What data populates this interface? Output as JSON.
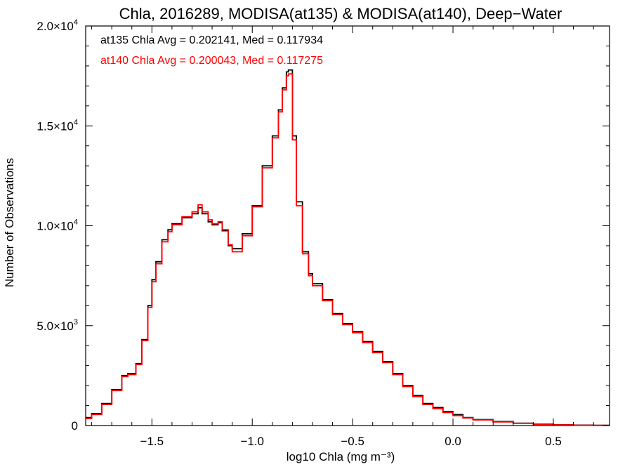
{
  "chart_data": {
    "type": "line",
    "step": true,
    "title": "Chla, 2016289, MODISA(at135) & MODISA(at140), Deep−Water",
    "xlabel": "log10 Chla (mg m⁻³)",
    "ylabel": "Number of Observations",
    "xlim": [
      -1.83,
      0.78
    ],
    "ylim": [
      0,
      20000
    ],
    "x_ticks": [
      {
        "value": -1.5,
        "label": "−1.5"
      },
      {
        "value": -1.0,
        "label": "−1.0"
      },
      {
        "value": -0.5,
        "label": "−0.5"
      },
      {
        "value": 0.0,
        "label": "0.0"
      },
      {
        "value": 0.5,
        "label": "0.5"
      }
    ],
    "y_ticks": [
      {
        "value": 0,
        "mant": "0",
        "exp": ""
      },
      {
        "value": 5000,
        "mant": "5.0×10",
        "exp": "3"
      },
      {
        "value": 10000,
        "mant": "1.0×10",
        "exp": "4"
      },
      {
        "value": 15000,
        "mant": "1.5×10",
        "exp": "4"
      },
      {
        "value": 20000,
        "mant": "2.0×10",
        "exp": "4"
      }
    ],
    "annotations": [
      {
        "text": "at135 Chla Avg = 0.202141, Med = 0.117934",
        "color": "#000000"
      },
      {
        "text": "at140 Chla Avg = 0.200043, Med = 0.117275",
        "color": "#ff0000"
      }
    ],
    "series": [
      {
        "color": "#000000",
        "x": [
          -1.83,
          -1.8,
          -1.75,
          -1.7,
          -1.65,
          -1.62,
          -1.58,
          -1.55,
          -1.52,
          -1.5,
          -1.48,
          -1.45,
          -1.42,
          -1.4,
          -1.35,
          -1.3,
          -1.27,
          -1.25,
          -1.22,
          -1.2,
          -1.17,
          -1.15,
          -1.12,
          -1.1,
          -1.05,
          -1.0,
          -0.95,
          -0.9,
          -0.87,
          -0.85,
          -0.83,
          -0.82,
          -0.8,
          -0.78,
          -0.75,
          -0.72,
          -0.7,
          -0.65,
          -0.6,
          -0.55,
          -0.5,
          -0.45,
          -0.4,
          -0.35,
          -0.3,
          -0.25,
          -0.2,
          -0.15,
          -0.1,
          -0.05,
          0.0,
          0.05,
          0.1,
          0.2,
          0.3,
          0.4,
          0.5,
          0.6,
          0.7,
          0.78
        ],
        "y": [
          400,
          600,
          1100,
          1800,
          2500,
          2600,
          3100,
          4300,
          6000,
          7300,
          8200,
          9300,
          9800,
          10100,
          10400,
          10600,
          10900,
          10600,
          10200,
          10050,
          10150,
          9750,
          9000,
          8850,
          9600,
          11000,
          13000,
          14500,
          15800,
          16900,
          17700,
          17800,
          14500,
          11200,
          8700,
          7600,
          7100,
          6300,
          5600,
          5100,
          4700,
          4200,
          3700,
          3200,
          2600,
          2000,
          1500,
          1100,
          900,
          700,
          550,
          400,
          300,
          200,
          120,
          70,
          40,
          20,
          10,
          0
        ]
      },
      {
        "color": "#ff0000",
        "x": [
          -1.83,
          -1.8,
          -1.75,
          -1.7,
          -1.65,
          -1.62,
          -1.58,
          -1.55,
          -1.52,
          -1.5,
          -1.48,
          -1.45,
          -1.42,
          -1.4,
          -1.35,
          -1.3,
          -1.27,
          -1.25,
          -1.22,
          -1.2,
          -1.17,
          -1.15,
          -1.12,
          -1.1,
          -1.05,
          -1.0,
          -0.95,
          -0.9,
          -0.87,
          -0.85,
          -0.83,
          -0.82,
          -0.8,
          -0.78,
          -0.75,
          -0.72,
          -0.7,
          -0.65,
          -0.6,
          -0.55,
          -0.5,
          -0.45,
          -0.4,
          -0.35,
          -0.3,
          -0.25,
          -0.2,
          -0.15,
          -0.1,
          -0.05,
          0.0,
          0.05,
          0.1,
          0.2,
          0.3,
          0.4,
          0.5,
          0.6,
          0.7,
          0.78
        ],
        "y": [
          350,
          550,
          1050,
          1750,
          2450,
          2550,
          3050,
          4250,
          5900,
          7200,
          8100,
          9200,
          9700,
          10050,
          10450,
          10700,
          11050,
          10700,
          10300,
          10100,
          10200,
          9800,
          9050,
          8700,
          9500,
          10950,
          12900,
          14400,
          15700,
          16800,
          17500,
          17600,
          14300,
          11000,
          8600,
          7500,
          7000,
          6250,
          5550,
          5050,
          4650,
          4150,
          3650,
          3150,
          2550,
          1950,
          1450,
          1050,
          850,
          650,
          500,
          380,
          280,
          180,
          110,
          60,
          35,
          15,
          8,
          0
        ]
      }
    ]
  }
}
